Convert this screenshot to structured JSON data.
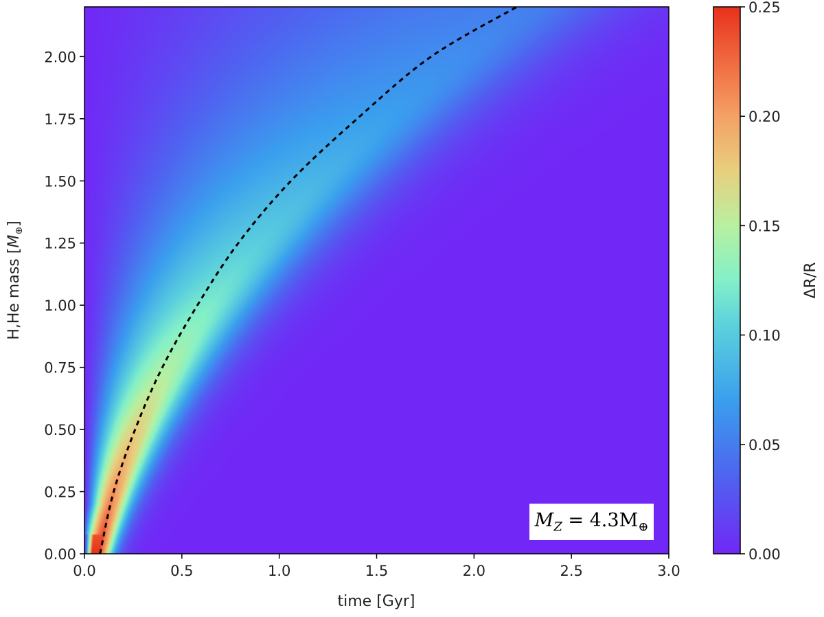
{
  "chart_data": {
    "type": "heatmap",
    "xlabel": "time [Gyr]",
    "ylabel_text": "H,He mass [",
    "ylabel_symbol": "M",
    "ylabel_sub": "⊕",
    "ylabel_end": "]",
    "xlim": [
      0.0,
      3.0
    ],
    "ylim": [
      0.0,
      2.2
    ],
    "x_ticks": [
      "0.0",
      "0.5",
      "1.0",
      "1.5",
      "2.0",
      "2.5",
      "3.0"
    ],
    "y_ticks": [
      "0.00",
      "0.25",
      "0.50",
      "0.75",
      "1.00",
      "1.25",
      "1.50",
      "1.75",
      "2.00"
    ],
    "colorbar": {
      "label": "ΔR/R",
      "range": [
        0.0,
        0.25
      ],
      "ticks": [
        "0.00",
        "0.05",
        "0.10",
        "0.15",
        "0.20",
        "0.25"
      ],
      "colormap": "rainbow"
    },
    "ridge_curve": {
      "style": "dashed",
      "color": "#000000",
      "points": [
        [
          0.08,
          0.0
        ],
        [
          0.15,
          0.25
        ],
        [
          0.26,
          0.5
        ],
        [
          0.4,
          0.75
        ],
        [
          0.58,
          1.0
        ],
        [
          0.79,
          1.25
        ],
        [
          1.06,
          1.5
        ],
        [
          1.4,
          1.75
        ],
        [
          1.78,
          2.0
        ],
        [
          2.22,
          2.2
        ]
      ]
    },
    "annotation": {
      "main": "M",
      "sub": "Z",
      "rest": " = 4.3M",
      "symbol": "⊕"
    },
    "grid": false
  }
}
